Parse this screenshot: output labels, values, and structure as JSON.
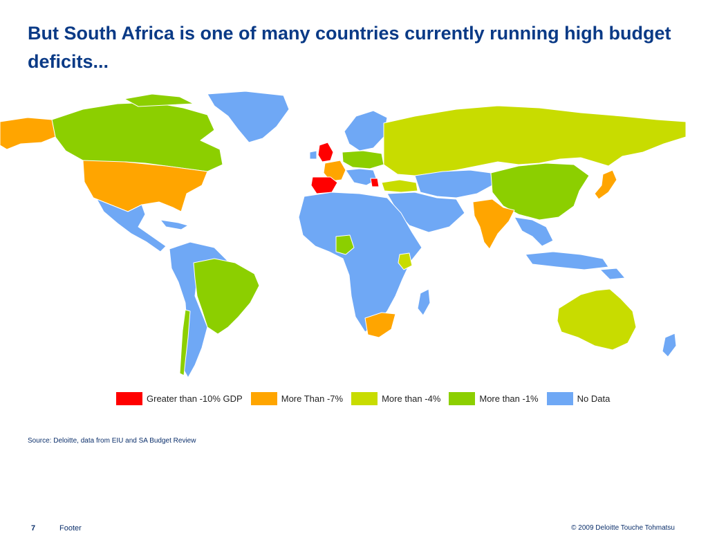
{
  "slide": {
    "title": "But South Africa is one of many countries currently running high budget deficits...",
    "source": "Source: Deloitte, data from EIU and SA Budget Review",
    "page_number": "7",
    "footer": "Footer",
    "copyright": "© 2009 Deloitte Touche Tohmatsu"
  },
  "legend": [
    {
      "label": "Greater than -10% GDP",
      "color": "#ff0000"
    },
    {
      "label": "More Than -7%",
      "color": "#ffa500"
    },
    {
      "label": "More than -4%",
      "color": "#c8dc00"
    },
    {
      "label": "More than -1%",
      "color": "#8ccf00"
    },
    {
      "label": "No Data",
      "color": "#6fa8f5"
    }
  ],
  "map_regions": [
    {
      "name": "North America (Canada)",
      "category": "More than -1%"
    },
    {
      "name": "Alaska",
      "category": "More Than -7%"
    },
    {
      "name": "United States",
      "category": "More Than -7%"
    },
    {
      "name": "Greenland",
      "category": "No Data"
    },
    {
      "name": "Central America",
      "category": "No Data"
    },
    {
      "name": "Brazil",
      "category": "More than -1%"
    },
    {
      "name": "Chile",
      "category": "More than -1%"
    },
    {
      "name": "Rest of South America",
      "category": "No Data"
    },
    {
      "name": "United Kingdom",
      "category": "Greater than -10% GDP"
    },
    {
      "name": "Spain",
      "category": "Greater than -10% GDP"
    },
    {
      "name": "Greece",
      "category": "Greater than -10% GDP"
    },
    {
      "name": "France",
      "category": "More Than -7%"
    },
    {
      "name": "Central Europe",
      "category": "More than -1%"
    },
    {
      "name": "Russia",
      "category": "More than -4%"
    },
    {
      "name": "Turkey",
      "category": "More than -4%"
    },
    {
      "name": "China",
      "category": "More than -1%"
    },
    {
      "name": "India",
      "category": "More Than -7%"
    },
    {
      "name": "Japan",
      "category": "More Than -7%"
    },
    {
      "name": "Africa",
      "category": "No Data"
    },
    {
      "name": "Nigeria",
      "category": "More than -1%"
    },
    {
      "name": "Kenya",
      "category": "More than -4%"
    },
    {
      "name": "South Africa",
      "category": "More Than -7%"
    },
    {
      "name": "Middle East",
      "category": "No Data"
    },
    {
      "name": "Southeast Asia",
      "category": "No Data"
    },
    {
      "name": "Australia",
      "category": "More than -4%"
    }
  ]
}
